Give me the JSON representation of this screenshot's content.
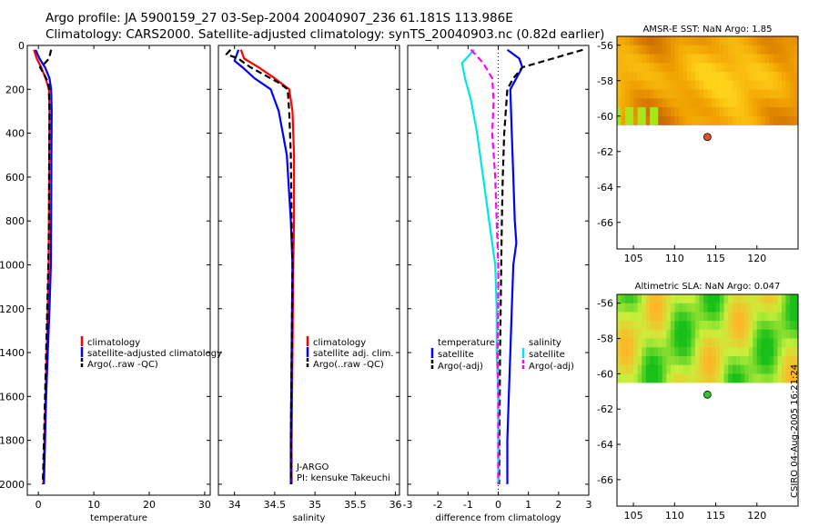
{
  "header": {
    "title_line1": "Argo profile: JA 5900159_27 03-Sep-2004 20040907_236 61.181S 113.986E",
    "title_line2": "Climatology: CARS2000. Satellite-adjusted climatology: synTS_20040903.nc (0.82d earlier)"
  },
  "side_stamp": "CSIRO 04-Aug-2005 16:21:24",
  "chart_data": [
    {
      "id": "temperature",
      "type": "line",
      "xlabel": "temperature",
      "ylabel": "",
      "xlim": [
        -2,
        31
      ],
      "ylim": [
        2050,
        0
      ],
      "xticks": [
        0,
        10,
        20,
        30
      ],
      "yticks": [
        0,
        200,
        400,
        600,
        800,
        1000,
        1200,
        1400,
        1600,
        1800,
        2000
      ],
      "legend": {
        "position": "middle-right",
        "entries": [
          "climatology",
          "satellite-adjusted climatology",
          "Argo(..raw -QC)"
        ]
      },
      "series": [
        {
          "name": "climatology",
          "color": "#ff0000",
          "dash": "solid",
          "points": [
            [
              -0.8,
              20
            ],
            [
              -0.3,
              60
            ],
            [
              0.5,
              100
            ],
            [
              1.3,
              150
            ],
            [
              1.9,
              200
            ],
            [
              2.0,
              300
            ],
            [
              1.95,
              500
            ],
            [
              1.9,
              800
            ],
            [
              1.85,
              1000
            ],
            [
              1.7,
              1200
            ],
            [
              1.5,
              1400
            ],
            [
              1.3,
              1600
            ],
            [
              1.1,
              1800
            ],
            [
              0.9,
              2000
            ]
          ]
        },
        {
          "name": "satellite-adjusted climatology",
          "color": "#0000ff",
          "dash": "solid",
          "points": [
            [
              -0.5,
              20
            ],
            [
              0.2,
              60
            ],
            [
              1.2,
              100
            ],
            [
              2.0,
              150
            ],
            [
              2.3,
              200
            ],
            [
              2.4,
              300
            ],
            [
              2.35,
              500
            ],
            [
              2.3,
              800
            ],
            [
              2.25,
              1000
            ],
            [
              2.0,
              1200
            ],
            [
              1.7,
              1400
            ],
            [
              1.4,
              1600
            ],
            [
              1.2,
              1800
            ],
            [
              1.0,
              2000
            ]
          ]
        },
        {
          "name": "Argo(..raw -QC)",
          "color": "#000000",
          "dash": "dashed",
          "points": [
            [
              2.3,
              20
            ],
            [
              2.1,
              40
            ],
            [
              1.9,
              60
            ],
            [
              1.2,
              80
            ],
            [
              0.3,
              100
            ],
            [
              1.0,
              130
            ],
            [
              1.8,
              170
            ],
            [
              1.9,
              200
            ],
            [
              2.0,
              300
            ],
            [
              1.95,
              500
            ],
            [
              1.9,
              800
            ],
            [
              1.8,
              1000
            ],
            [
              1.6,
              1200
            ],
            [
              1.4,
              1400
            ],
            [
              1.2,
              1600
            ],
            [
              1.0,
              1800
            ],
            [
              0.8,
              2000
            ]
          ]
        }
      ]
    },
    {
      "id": "salinity",
      "type": "line",
      "xlabel": "salinity",
      "ylabel": "",
      "xlim": [
        33.8,
        36.05
      ],
      "ylim": [
        2050,
        0
      ],
      "xticks": [
        34,
        34.5,
        35,
        35.5,
        36
      ],
      "xticklabels": [
        "34",
        "34.5",
        "35",
        "35.5",
        "36"
      ],
      "legend": {
        "position": "middle-right",
        "entries": [
          "climatology",
          "satellite adj. clim.",
          "Argo(..raw -QC)"
        ]
      },
      "annotations": [
        "J-ARGO",
        "PI: kensuke Takeuchi"
      ],
      "series": [
        {
          "name": "climatology",
          "color": "#ff0000",
          "dash": "solid",
          "points": [
            [
              34.08,
              20
            ],
            [
              34.12,
              60
            ],
            [
              34.3,
              100
            ],
            [
              34.5,
              150
            ],
            [
              34.68,
              200
            ],
            [
              34.72,
              300
            ],
            [
              34.74,
              500
            ],
            [
              34.74,
              800
            ],
            [
              34.73,
              1000
            ],
            [
              34.72,
              1400
            ],
            [
              34.71,
              1800
            ],
            [
              34.71,
              2000
            ]
          ]
        },
        {
          "name": "satellite adj. clim.",
          "color": "#0000ff",
          "dash": "solid",
          "points": [
            [
              34.05,
              20
            ],
            [
              34.0,
              70
            ],
            [
              34.1,
              100
            ],
            [
              34.25,
              150
            ],
            [
              34.45,
              200
            ],
            [
              34.55,
              300
            ],
            [
              34.65,
              500
            ],
            [
              34.7,
              800
            ],
            [
              34.72,
              1000
            ],
            [
              34.71,
              1400
            ],
            [
              34.7,
              1800
            ],
            [
              34.7,
              2000
            ]
          ]
        },
        {
          "name": "Argo(..raw -QC)",
          "color": "#000000",
          "dash": "dashed",
          "points": [
            [
              33.95,
              20
            ],
            [
              33.9,
              40
            ],
            [
              34.05,
              60
            ],
            [
              34.12,
              80
            ],
            [
              34.2,
              100
            ],
            [
              34.35,
              130
            ],
            [
              34.55,
              170
            ],
            [
              34.66,
              200
            ],
            [
              34.68,
              300
            ],
            [
              34.7,
              500
            ],
            [
              34.71,
              800
            ],
            [
              34.72,
              1000
            ],
            [
              34.71,
              1400
            ],
            [
              34.7,
              1800
            ],
            [
              34.7,
              2000
            ]
          ]
        }
      ]
    },
    {
      "id": "difference",
      "type": "line",
      "xlabel": "difference from climatology",
      "ylabel": "",
      "xlim": [
        -3,
        3
      ],
      "ylim": [
        2050,
        0
      ],
      "xticks": [
        -3,
        -2,
        -1,
        0,
        1,
        2,
        3
      ],
      "legend": {
        "position": "middle",
        "temperature_entries": [
          "temperature",
          "satellite",
          "Argo(-adj)"
        ],
        "salinity_entries": [
          "salinity",
          "satellite",
          "Argo(-adj)"
        ]
      },
      "series": [
        {
          "name": "satellite (temperature)",
          "color": "#0000ff",
          "dash": "solid",
          "points": [
            [
              0.3,
              20
            ],
            [
              0.7,
              60
            ],
            [
              0.8,
              100
            ],
            [
              0.6,
              150
            ],
            [
              0.4,
              200
            ],
            [
              0.45,
              400
            ],
            [
              0.5,
              600
            ],
            [
              0.55,
              800
            ],
            [
              0.6,
              900
            ],
            [
              0.5,
              1000
            ],
            [
              0.45,
              1200
            ],
            [
              0.4,
              1400
            ],
            [
              0.35,
              1600
            ],
            [
              0.3,
              1800
            ],
            [
              0.3,
              2000
            ]
          ]
        },
        {
          "name": "Argo(-adj) (temperature)",
          "color": "#000000",
          "dash": "dashed",
          "points": [
            [
              2.8,
              20
            ],
            [
              1.8,
              60
            ],
            [
              0.8,
              100
            ],
            [
              0.5,
              150
            ],
            [
              0.3,
              200
            ],
            [
              0.2,
              400
            ],
            [
              0.15,
              600
            ],
            [
              0.12,
              800
            ],
            [
              0.1,
              1000
            ],
            [
              0.08,
              1200
            ],
            [
              0.06,
              1400
            ],
            [
              0.05,
              1600
            ],
            [
              0.04,
              1800
            ],
            [
              0.03,
              2000
            ]
          ]
        },
        {
          "name": "satellite (salinity)",
          "color": "#00e6e6",
          "dash": "solid",
          "points": [
            [
              -0.8,
              20
            ],
            [
              -1.2,
              80
            ],
            [
              -1.1,
              150
            ],
            [
              -0.9,
              250
            ],
            [
              -0.7,
              400
            ],
            [
              -0.5,
              600
            ],
            [
              -0.3,
              800
            ],
            [
              -0.1,
              1000
            ],
            [
              -0.05,
              1200
            ],
            [
              -0.05,
              1400
            ],
            [
              0.0,
              1600
            ],
            [
              0.0,
              1800
            ],
            [
              0.0,
              2000
            ]
          ]
        },
        {
          "name": "Argo(-adj) (salinity)",
          "color": "#ff00ff",
          "dash": "dashed",
          "points": [
            [
              -0.9,
              20
            ],
            [
              -0.5,
              80
            ],
            [
              -0.2,
              150
            ],
            [
              -0.15,
              250
            ],
            [
              -0.2,
              400
            ],
            [
              -0.1,
              600
            ],
            [
              -0.05,
              800
            ],
            [
              0.0,
              1000
            ],
            [
              0.0,
              1200
            ],
            [
              -0.02,
              1400
            ],
            [
              0.0,
              1600
            ],
            [
              0.0,
              1800
            ],
            [
              0.0,
              2000
            ]
          ]
        }
      ]
    },
    {
      "id": "sst-map",
      "type": "heatmap",
      "title": "AMSR-E SST: NaN Argo: 1.85",
      "xlim": [
        103,
        125
      ],
      "ylim": [
        -67.5,
        -55.5
      ],
      "xticks": [
        105,
        110,
        115,
        120
      ],
      "yticks": [
        -56,
        -58,
        -60,
        -62,
        -64,
        -66
      ],
      "marker": {
        "lon": 113.986,
        "lat": -61.181,
        "color": "#e8502a"
      },
      "data_extent": {
        "lon": [
          103,
          125
        ],
        "lat": [
          -60.2,
          -55.5
        ]
      },
      "colors": {
        "low": "#ffd21a",
        "mid": "#f0a000",
        "high": "#c86400",
        "edge": "#a8e61a"
      }
    },
    {
      "id": "sla-map",
      "type": "heatmap",
      "title": "Altimetric SLA: NaN Argo: 0.047",
      "xlim": [
        103,
        125
      ],
      "ylim": [
        -67.5,
        -55.5
      ],
      "xticks": [
        105,
        110,
        115,
        120
      ],
      "yticks": [
        -56,
        -58,
        -60,
        -62,
        -64,
        -66
      ],
      "marker": {
        "lon": 113.986,
        "lat": -61.181,
        "color": "#35c335"
      },
      "data_extent": {
        "lon": [
          103,
          125
        ],
        "lat": [
          -60.2,
          -55.5
        ]
      },
      "colors": {
        "low": "#19c019",
        "mid": "#c8f03c",
        "high": "#ffb428"
      }
    }
  ]
}
